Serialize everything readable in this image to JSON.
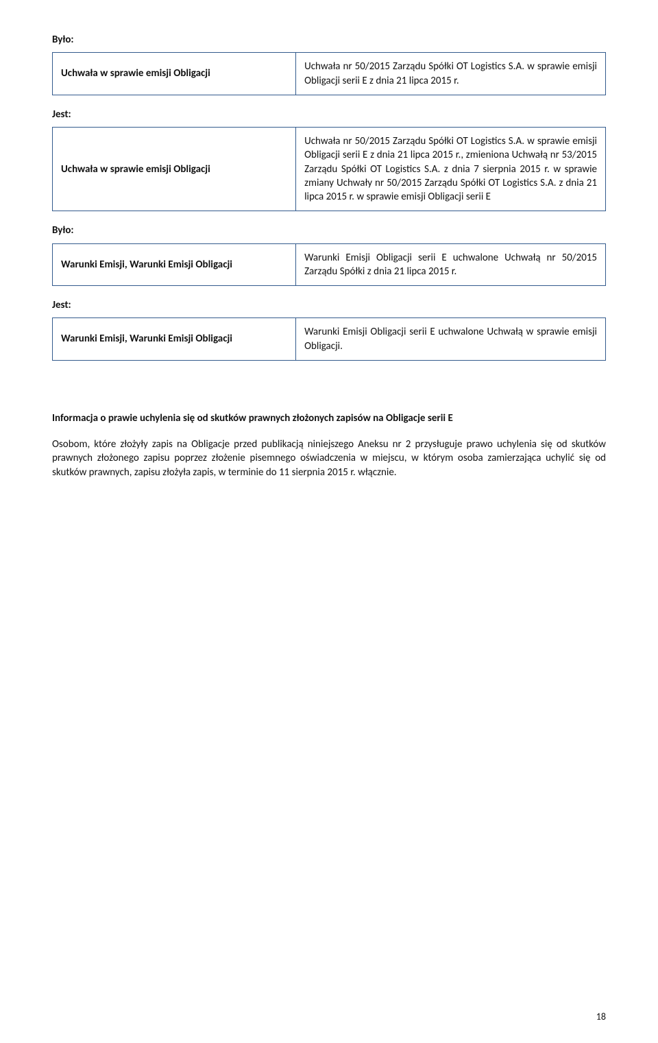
{
  "labels": {
    "bylo": "Było:",
    "jest": "Jest:"
  },
  "row1": {
    "left": "Uchwała w sprawie emisji Obligacji",
    "right": "Uchwała nr 50/2015 Zarządu Spółki OT Logistics S.A. w sprawie emisji Obligacji serii E z dnia 21 lipca 2015 r."
  },
  "row2": {
    "left": "Uchwała w sprawie emisji Obligacji",
    "right": "Uchwała nr 50/2015 Zarządu Spółki OT Logistics S.A. w sprawie emisji Obligacji serii E z dnia 21 lipca 2015 r., zmieniona Uchwałą nr 53/2015 Zarządu Spółki OT Logistics S.A. z dnia 7 sierpnia 2015 r. w sprawie zmiany Uchwały nr 50/2015 Zarządu Spółki OT Logistics S.A. z dnia 21 lipca 2015 r. w sprawie emisji Obligacji serii E"
  },
  "row3": {
    "left": "Warunki Emisji, Warunki Emisji Obligacji",
    "right": "Warunki Emisji Obligacji serii E uchwalone Uchwałą nr 50/2015 Zarządu Spółki z dnia 21 lipca 2015 r."
  },
  "row4": {
    "left": "Warunki Emisji, Warunki Emisji Obligacji",
    "right": "Warunki Emisji Obligacji serii E uchwalone Uchwałą w sprawie emisji Obligacji."
  },
  "info": {
    "heading": "Informacja o prawie uchylenia się od skutków prawnych złożonych zapisów na Obligacje serii E",
    "para": "Osobom, które złożyły zapis na Obligacje przed publikacją niniejszego Aneksu nr 2 przysługuje prawo uchylenia się od skutków prawnych złożonego zapisu poprzez złożenie pisemnego oświadczenia w miejscu, w którym osoba zamierzająca uchylić się od skutków prawnych, zapisu złożyła zapis, w terminie do 11 sierpnia 2015 r. włącznie."
  },
  "pageNumber": "18"
}
